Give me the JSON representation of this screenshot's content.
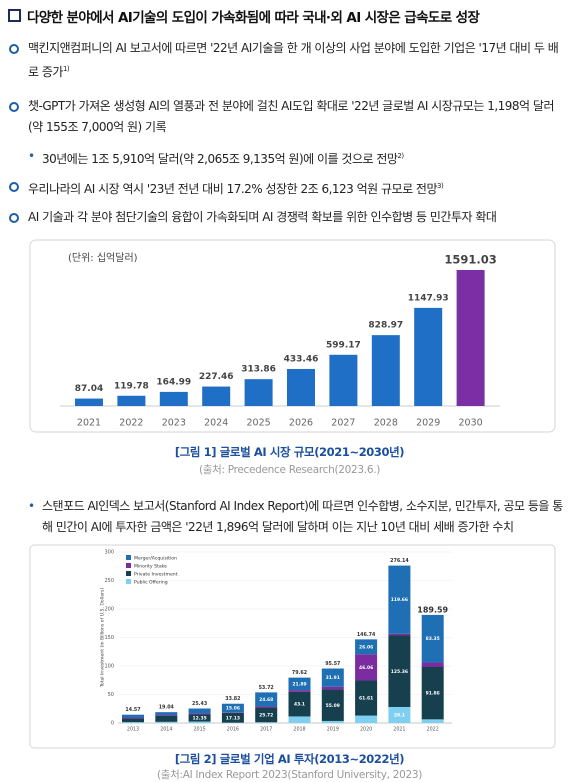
{
  "heading": "다양한 분야에서 AI기술의 도입이 가속화됨에 따라 국내·외 AI 시장은 급속도로 성장",
  "bullets": [
    {
      "text": "맥킨지앤컴퍼니의 AI 보고서에 따르면 '22년 AI기술을 한 개 이상의 사업 분야에 도입한 기업은 '17년 대비 두 배로 증가",
      "note": "1)"
    },
    {
      "text": "챗-GPT가 가져온 생성형 AI의 열풍과 전 분야에 걸친 AI도입 확대로 '22년 글로벌 AI 시장규모는 1,198억 달러(약 155조 7,000억 원) 기록"
    },
    {
      "text": "30년에는 1조 5,910억 달러(약 2,065조 9,135억 원)에 이를 것으로 전망",
      "note": "2)"
    },
    {
      "text": "우리나라의 AI 시장 역시 '23년 전년 대비 17.2% 성장한 2조 6,123 억원 규모로 전망",
      "note": "3)"
    },
    {
      "text": "AI 기술과 각 분야 첨단기술의 융합이 가속화되며 AI 경쟁력 확보를 위한 인수합병 등 민간투자 확대"
    },
    {
      "text": "스탠포드 AI인덱스 보고서(Stanford AI Index Report)에 따르면 인수합병, 소수지분, 민간투자, 공모 등을 통해 민간이 AI에 투자한 금액은 '22년 1,896억 달러에 달하며 이는 지난 10년 대비 세배 증가한 수치"
    }
  ],
  "chart_data": [
    {
      "type": "bar",
      "unit": "(단위: 십억달러)",
      "categories": [
        "2021",
        "2022",
        "2023",
        "2024",
        "2025",
        "2026",
        "2027",
        "2028",
        "2029",
        "2030"
      ],
      "values": [
        87.04,
        119.78,
        164.99,
        227.46,
        313.86,
        433.46,
        599.17,
        828.97,
        1147.93,
        1591.03
      ],
      "colors": [
        "#1f6fc6",
        "#1f6fc6",
        "#1f6fc6",
        "#1f6fc6",
        "#1f6fc6",
        "#1f6fc6",
        "#1f6fc6",
        "#1f6fc6",
        "#1f6fc6",
        "#7a2fa5"
      ],
      "caption": "[그림 1] 글로벌 AI 시장 규모(2021~2030년)",
      "source": "(출처: Precedence Research(2023.6.)"
    },
    {
      "type": "stacked-bar",
      "ylabel": "Total Investment (in Billions of U.S. Dollars)",
      "categories": [
        "2013",
        "2014",
        "2015",
        "2016",
        "2017",
        "2018",
        "2019",
        "2020",
        "2021",
        "2022"
      ],
      "series": [
        {
          "name": "Merger/Acquisition",
          "color": "#1f6fb4",
          "values": [
            5,
            5,
            8.5,
            15.06,
            24.68,
            21.89,
            31.91,
            26.06,
            119.66,
            83.35
          ],
          "value_labels": [
            null,
            null,
            null,
            "15.06",
            "24.68",
            "21.89",
            "31.91",
            "26.06",
            "119.66",
            "83.35"
          ]
        },
        {
          "name": "Minority Stake",
          "color": "#7b2c9e",
          "values": [
            1.5,
            1.5,
            2,
            1,
            2,
            3.13,
            5,
            46.06,
            3.02,
            8
          ],
          "value_labels": [
            null,
            null,
            null,
            null,
            null,
            null,
            null,
            "46.06",
            null,
            null
          ]
        },
        {
          "name": "Private Investment",
          "color": "#17404f",
          "values": [
            6.5,
            10.5,
            12.35,
            17.13,
            25.72,
            43.1,
            55.09,
            61.61,
            125.36,
            91.86
          ],
          "value_labels": [
            null,
            null,
            "12.35",
            "17.13",
            "25.72",
            "43.1",
            "55.09",
            "61.61",
            "125.36",
            "91.86"
          ]
        },
        {
          "name": "Public Offering",
          "color": "#7fd0f0",
          "values": [
            1.57,
            2.04,
            2.58,
            0.63,
            1.32,
            11.5,
            3.57,
            13.01,
            28.1,
            6.38
          ],
          "value_labels": [
            null,
            null,
            null,
            null,
            null,
            null,
            null,
            null,
            "28.1",
            null
          ]
        }
      ],
      "totals": [
        14.57,
        19.04,
        25.43,
        33.82,
        53.72,
        79.62,
        95.57,
        146.74,
        276.14,
        189.59
      ],
      "ylim": [
        0,
        300
      ],
      "yticks": [
        0,
        50,
        100,
        150,
        200,
        250,
        300
      ],
      "grid": true,
      "legend": "top-left",
      "caption": "[그림 2] 글로벌 기업 AI 투자(2013~2022년)",
      "source": "(출처:AI Index Report 2023(Stanford University, 2023)"
    }
  ]
}
